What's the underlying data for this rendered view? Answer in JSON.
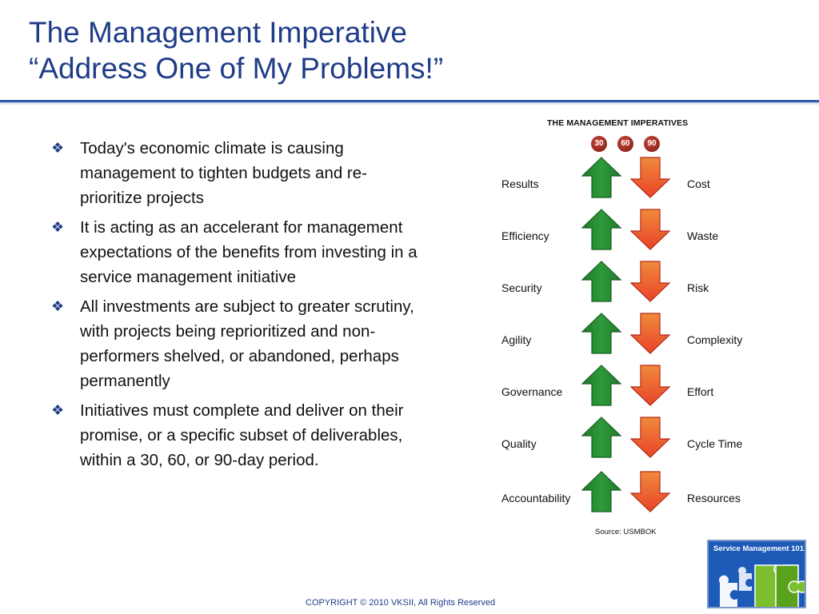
{
  "slide": {
    "title_line1": "The Management Imperative",
    "title_line2": "“Address One of My Problems!”",
    "bullet_symbol": "❖",
    "bullets": [
      "Today's economic climate is causing management to tighten budgets and re-prioritize projects",
      "It is acting as an accelerant for management expectations of the benefits from investing in a service management initiative",
      "All investments are subject to greater scrutiny, with projects being reprioritized and non-performers shelved, or abandoned, perhaps permanently",
      "Initiatives must complete and deliver on their promise, or a specific subset of deliverables, within a 30, 60, or 90-day period."
    ],
    "footer": "COPYRIGHT © 2010 VKSII, All Rights Reserved"
  },
  "figure": {
    "title": "THE MANAGEMENT IMPERATIVES",
    "badges": [
      "30",
      "60",
      "90"
    ],
    "rows": [
      {
        "up": "Results",
        "down": "Cost"
      },
      {
        "up": "Efficiency",
        "down": "Waste"
      },
      {
        "up": "Security",
        "down": "Risk"
      },
      {
        "up": "Agility",
        "down": "Complexity"
      },
      {
        "up": "Governance",
        "down": "Effort"
      },
      {
        "up": "Quality",
        "down": "Cycle Time"
      },
      {
        "up": "Accountability",
        "down": "Resources"
      }
    ],
    "source": "Source: USMBOK",
    "up_color": "#2e9a3a",
    "down_color": "#e8432a"
  },
  "logo": {
    "text": "Service Management 101",
    "bg_color": "#1e5bb8"
  }
}
